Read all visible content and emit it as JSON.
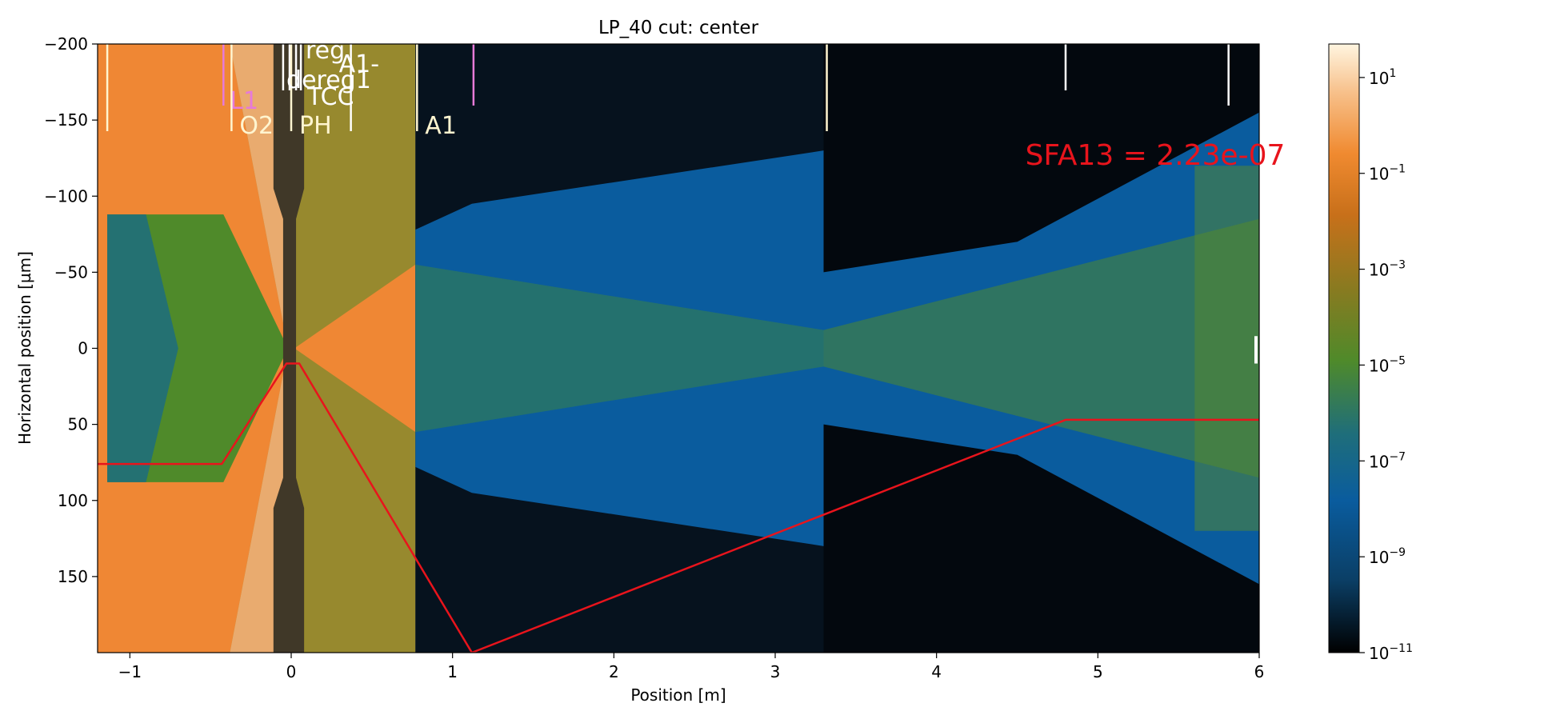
{
  "chart_data": {
    "type": "heatmap",
    "title": "LP_40 cut: center",
    "xlabel": "Position [m]",
    "ylabel": "Horizontal position [µm]",
    "xlim": [
      -1.2,
      6
    ],
    "ylim": [
      -200,
      200
    ],
    "y_inverted": true,
    "x_ticks": [
      -1,
      0,
      1,
      2,
      3,
      4,
      5,
      6
    ],
    "x_tick_labels": [
      "−1",
      "0",
      "1",
      "2",
      "3",
      "4",
      "5",
      "6"
    ],
    "y_ticks": [
      -200,
      -150,
      -100,
      -50,
      0,
      50,
      100,
      150
    ],
    "y_tick_labels": [
      "−200",
      "−150",
      "−100",
      "−50",
      "0",
      "50",
      "100",
      "150"
    ],
    "colorbar": {
      "scale": "log",
      "range": [
        1e-11,
        50
      ],
      "tick_values": [
        10,
        0.1,
        0.001,
        1e-05,
        1e-07,
        1e-09,
        1e-11
      ],
      "tick_labels": [
        {
          "base": "10",
          "exp": "1"
        },
        {
          "base": "10",
          "exp": "−1"
        },
        {
          "base": "10",
          "exp": "−3"
        },
        {
          "base": "10",
          "exp": "−5"
        },
        {
          "base": "10",
          "exp": "−7"
        },
        {
          "base": "10",
          "exp": "−9"
        },
        {
          "base": "10",
          "exp": "−11"
        }
      ],
      "colors": [
        "#000000",
        "#0b3f66",
        "#0a5c9e",
        "#1f6e7a",
        "#4f8a2a",
        "#8a7a20",
        "#c8701a",
        "#f08a30",
        "#f7c08a",
        "#fff5e0"
      ]
    },
    "element_markers": [
      {
        "x": -1.14,
        "color": "#fff5d0",
        "label": ""
      },
      {
        "x": -0.42,
        "color": "#e67ad8",
        "label": "L1",
        "label_color": "#e67ad8"
      },
      {
        "x": -0.37,
        "color": "#fff5d0",
        "label": "O2",
        "label_color": "#fff5d0"
      },
      {
        "x": -0.05,
        "color": "#ffffff",
        "label": ""
      },
      {
        "x": -0.01,
        "color": "#ffffff",
        "label": "reg",
        "label_color": "#ffffff"
      },
      {
        "x": 0.0,
        "color": "#fff5d0",
        "label": "PH",
        "label_color": "#fff5d0"
      },
      {
        "x": 0.03,
        "color": "#ffffff",
        "label": "dereg1",
        "label_color": "#ffffff"
      },
      {
        "x": 0.06,
        "color": "#ffffff",
        "label": "TCC",
        "label_color": "#ffffff"
      },
      {
        "x": 0.37,
        "color": "#ffffff",
        "label": "A1-",
        "label_color": "#ffffff"
      },
      {
        "x": 0.78,
        "color": "#fff5d0",
        "label": "A1",
        "label_color": "#fff5d0"
      },
      {
        "x": 1.13,
        "color": "#e67ad8",
        "label": ""
      },
      {
        "x": 3.32,
        "color": "#fff5d0",
        "label": ""
      },
      {
        "x": 4.8,
        "color": "#ffffff",
        "label": ""
      },
      {
        "x": 5.81,
        "color": "#ffffff",
        "label": ""
      }
    ],
    "annotation": {
      "text": "SFA13 = 2.23e-07",
      "color": "#e8141c",
      "x": 4.55,
      "y": -127
    },
    "overlay_line": {
      "color": "#e8141c",
      "points": [
        [
          -1.2,
          76
        ],
        [
          -0.43,
          76
        ],
        [
          -0.03,
          10
        ],
        [
          0.05,
          10
        ],
        [
          1.12,
          200
        ],
        [
          4.8,
          47
        ],
        [
          6,
          47
        ]
      ]
    }
  }
}
